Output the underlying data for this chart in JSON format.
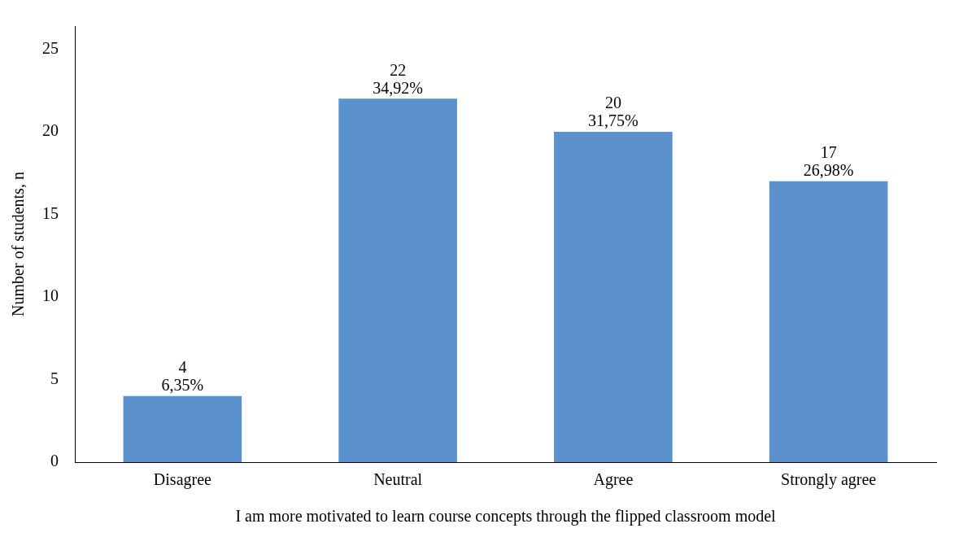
{
  "chart_data": {
    "type": "bar",
    "xlabel": "I am more motivated to learn course concepts through the flipped classroom model",
    "ylabel": "Number of students, n",
    "categories": [
      "Disagree",
      "Neutral",
      "Agree",
      "Strongly agree"
    ],
    "values": [
      4,
      22,
      20,
      17
    ],
    "value_labels": [
      "4\n6,35%",
      "22\n34,92%",
      "20\n31,75%",
      "17\n26,98%"
    ],
    "color": "#5b91cc",
    "ylim": [
      0,
      26.4
    ],
    "yticks": [
      0,
      5,
      10,
      15,
      20,
      25
    ],
    "grid": false,
    "legend": false
  }
}
